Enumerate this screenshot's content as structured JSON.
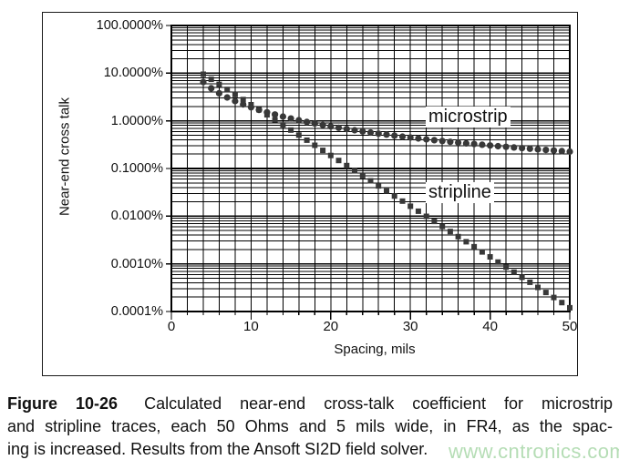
{
  "chart_data": {
    "type": "scatter",
    "title": "",
    "xlabel": "Spacing, mils",
    "ylabel": "Near-end cross talk",
    "y_scale": "log",
    "xlim": [
      0,
      50
    ],
    "ylim_percent": [
      0.0001,
      100
    ],
    "x_ticks": [
      0,
      10,
      20,
      30,
      40,
      50
    ],
    "x_minor_tick_step": 2,
    "y_tick_labels": [
      "100.0000%",
      "10.0000%",
      "1.0000%",
      "0.1000%",
      "0.0100%",
      "0.0010%",
      "0.0001%"
    ],
    "y_tick_values": [
      100,
      10,
      1,
      0.1,
      0.01,
      0.001,
      0.0001
    ],
    "grid": {
      "vertical_every_mils": 2,
      "horizontal": "log decades with 2-9 minors",
      "color": "#000000"
    },
    "marker_color": "#383838",
    "x": [
      4,
      5,
      6,
      7,
      8,
      9,
      10,
      11,
      12,
      13,
      14,
      15,
      16,
      17,
      18,
      19,
      20,
      21,
      22,
      23,
      24,
      25,
      26,
      27,
      28,
      29,
      30,
      31,
      32,
      33,
      34,
      35,
      36,
      37,
      38,
      39,
      40,
      41,
      42,
      43,
      44,
      45,
      46,
      47,
      48,
      49,
      50
    ],
    "series": [
      {
        "name": "microstrip",
        "marker": "circle",
        "values_percent": [
          6.5,
          4.83,
          3.79,
          3.09,
          2.59,
          2.21,
          1.92,
          1.69,
          1.51,
          1.36,
          1.23,
          1.12,
          1.03,
          0.949,
          0.879,
          0.818,
          0.764,
          0.716,
          0.673,
          0.635,
          0.6,
          0.568,
          0.539,
          0.513,
          0.489,
          0.467,
          0.446,
          0.427,
          0.409,
          0.393,
          0.378,
          0.363,
          0.35,
          0.337,
          0.326,
          0.315,
          0.304,
          0.294,
          0.285,
          0.276,
          0.268,
          0.26,
          0.252,
          0.245,
          0.239,
          0.232,
          0.226
        ]
      },
      {
        "name": "stripline",
        "marker": "square",
        "values_percent": [
          9.5,
          7.43,
          5.82,
          4.55,
          3.56,
          2.79,
          2.18,
          1.71,
          1.34,
          1.05,
          0.819,
          0.641,
          0.502,
          0.393,
          0.307,
          0.24,
          0.188,
          0.147,
          0.115,
          0.0902,
          0.0706,
          0.0552,
          0.0432,
          0.0338,
          0.0265,
          0.0207,
          0.0162,
          0.0127,
          0.00993,
          0.00777,
          0.00608,
          0.00476,
          0.00372,
          0.00291,
          0.00228,
          0.00178,
          0.0014,
          0.00109,
          0.000856,
          0.00067,
          0.000524,
          0.00041,
          0.000321,
          0.000251,
          0.000197,
          0.000154,
          0.00012
        ]
      }
    ]
  },
  "caption": {
    "label": "Figure 10-26",
    "line1_rest": "Calculated near-end cross-talk coefficient for microstrip",
    "line2": "and stripline traces, each 50 Ohms and 5 mils wide, in FR4, as the spac-",
    "line3": "ing is increased. Results from the Ansoft SI2D field solver."
  },
  "watermark": {
    "text": "www.cntronics.com",
    "color": "#b5ddb5"
  }
}
